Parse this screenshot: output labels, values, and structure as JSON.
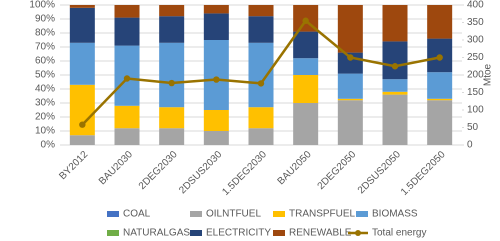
{
  "chart_data": {
    "type": "bar",
    "stacked": true,
    "grid": true,
    "categories": [
      "BY2012",
      "BAU2030",
      "2DEG2030",
      "2DSUS2030",
      "1.5DEG2030",
      "BAU2050",
      "2DEG2050",
      "2DSUS2050",
      "1.5DEG2050"
    ],
    "series": [
      {
        "name": "COAL",
        "color": "#4472c4",
        "values": [
          0,
          0,
          0,
          0,
          0,
          0,
          0,
          0,
          0
        ]
      },
      {
        "name": "OILNTFUEL",
        "color": "#a5a5a5",
        "values": [
          7,
          12,
          12,
          10,
          12,
          30,
          32,
          36,
          32
        ]
      },
      {
        "name": "TRANSPFUEL",
        "color": "#ffc000",
        "values": [
          36,
          16,
          15,
          15,
          15,
          20,
          1,
          2,
          1
        ]
      },
      {
        "name": "BIOMASS",
        "color": "#5b9bd5",
        "values": [
          30,
          43,
          46,
          50,
          46,
          12,
          18,
          9,
          19
        ]
      },
      {
        "name": "NATURALGAS",
        "color": "#70ad47",
        "values": [
          0,
          0,
          0,
          0,
          0,
          0,
          0,
          0,
          0
        ]
      },
      {
        "name": "ELECTRICITY",
        "color": "#264478",
        "values": [
          25,
          20,
          19,
          19,
          19,
          19,
          15,
          27,
          24
        ]
      },
      {
        "name": "RENEWABLE",
        "color": "#9e480e",
        "values": [
          2,
          9,
          8,
          6,
          8,
          19,
          34,
          26,
          24
        ]
      },
      {
        "name": "Total energy",
        "color": "#997300",
        "type": "line",
        "axis": "y2",
        "values": [
          58,
          190,
          177,
          187,
          176,
          355,
          250,
          225,
          250
        ]
      }
    ],
    "ylim": [
      0,
      100
    ],
    "yticks": [
      {
        "value": 0,
        "label": "0%"
      },
      {
        "value": 10,
        "label": "10%"
      },
      {
        "value": 20,
        "label": "20%"
      },
      {
        "value": 30,
        "label": "30%"
      },
      {
        "value": 40,
        "label": "40%"
      },
      {
        "value": 50,
        "label": "50%"
      },
      {
        "value": 60,
        "label": "60%"
      },
      {
        "value": 70,
        "label": "70%"
      },
      {
        "value": 80,
        "label": "80%"
      },
      {
        "value": 90,
        "label": "90%"
      },
      {
        "value": 100,
        "label": "100%"
      }
    ],
    "y2lim": [
      0,
      400
    ],
    "y2ticks": [
      0,
      50,
      100,
      150,
      200,
      250,
      300,
      350,
      400
    ],
    "y2label": "Mtoe"
  }
}
